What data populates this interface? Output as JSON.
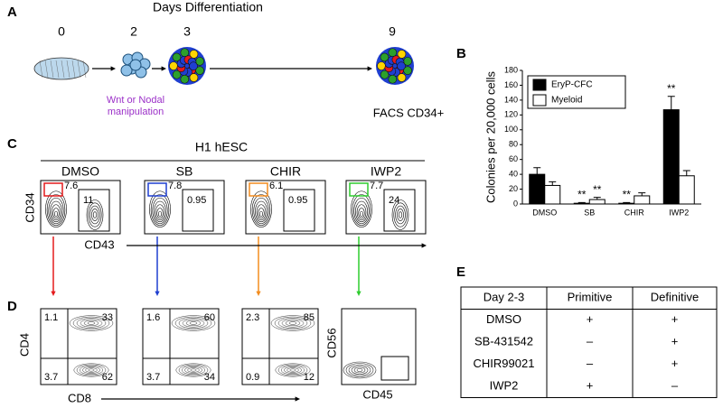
{
  "panel_labels": [
    "A",
    "B",
    "C",
    "D",
    "E"
  ],
  "panel_a": {
    "title": "Days Differentiation",
    "days": [
      0,
      2,
      3,
      9
    ],
    "manipulation": [
      "Wnt or Nodal",
      "manipulation"
    ],
    "readout": "FACS CD34+"
  },
  "chart_data": {
    "type": "bar",
    "y_label": "Colonies per 20,000 cells",
    "categories": [
      "DMSO",
      "SB",
      "CHIR",
      "IWP2"
    ],
    "series": [
      {
        "name": "EryP-CFC",
        "color": "#000000",
        "values": [
          40,
          1,
          1,
          127
        ],
        "errors": [
          9,
          1,
          1,
          18
        ]
      },
      {
        "name": "Myeloid",
        "color": "#ffffff",
        "values": [
          25,
          6,
          11,
          38
        ],
        "errors": [
          5,
          3,
          4,
          7
        ]
      }
    ],
    "annotations": [
      {
        "text": "**",
        "series": 0,
        "category": 1
      },
      {
        "text": "**",
        "series": 1,
        "category": 1
      },
      {
        "text": "**",
        "series": 0,
        "category": 2
      },
      {
        "text": "**",
        "series": 0,
        "category": 3
      }
    ],
    "ylim": [
      0,
      180
    ],
    "yticks": [
      0,
      20,
      40,
      60,
      80,
      100,
      120,
      140,
      160,
      180
    ],
    "legend": "top-left"
  },
  "panel_c": {
    "cell_line": "H1 hESC",
    "y_label": "CD34",
    "x_label": "CD43",
    "conditions": [
      "DMSO",
      "SB",
      "CHIR",
      "IWP2"
    ],
    "plots": [
      {
        "color": "#e41a1c",
        "gates": [
          7.6,
          11
        ]
      },
      {
        "color": "#1f3fd0",
        "gates": [
          7.8,
          0.95
        ]
      },
      {
        "color": "#f28c1e",
        "gates": [
          6.1,
          0.95
        ]
      },
      {
        "color": "#2ecc2e",
        "gates": [
          7.7,
          24
        ]
      }
    ]
  },
  "panel_d": {
    "x_label": "CD8",
    "y_label": "CD4",
    "nk_y_label": "CD56",
    "nk_x_label": "CD45",
    "plots": [
      [
        1.1,
        33,
        3.7,
        62
      ],
      [
        1.6,
        60,
        3.7,
        34
      ],
      [
        2.3,
        85,
        0.9,
        12
      ]
    ]
  },
  "table": {
    "header": [
      "Day 2-3",
      "Primitive",
      "Definitive"
    ],
    "rows": [
      [
        "DMSO",
        "+",
        "+"
      ],
      [
        "SB-431542",
        "–",
        "+"
      ],
      [
        "CHIR99021",
        "–",
        "+"
      ],
      [
        "IWP2",
        "+",
        "–"
      ]
    ]
  }
}
